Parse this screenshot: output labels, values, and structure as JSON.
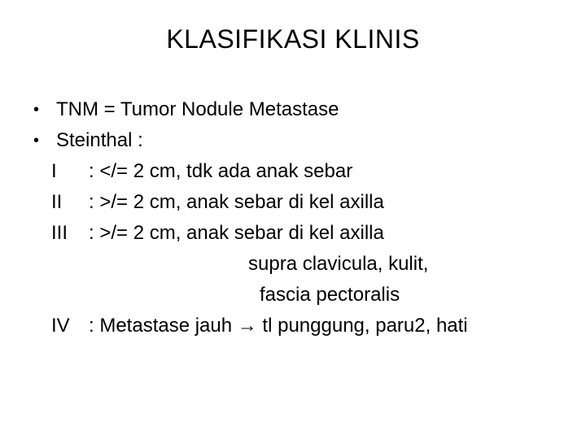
{
  "title": "KLASIFIKASI KLINIS",
  "bullets": {
    "b1": "TNM = Tumor Nodule Metastase",
    "b2": "Steinthal :"
  },
  "stages": {
    "s1": {
      "label": "I",
      "text": ": </= 2 cm, tdk ada anak sebar"
    },
    "s2": {
      "label": "II",
      "text": ": >/= 2 cm, anak sebar di kel axilla"
    },
    "s3": {
      "label": "III",
      "text": ": >/= 2 cm, anak sebar di kel axilla"
    },
    "s3_line2": "supra clavicula, kulit,",
    "s3_line3": "fascia pectoralis",
    "s4": {
      "label": "IV",
      "text": ": Metastase jauh → tl punggung, paru2, hati"
    }
  },
  "style": {
    "background_color": "#ffffff",
    "text_color": "#000000",
    "title_fontsize": 32,
    "body_fontsize": 24,
    "font_family": "Arial"
  }
}
